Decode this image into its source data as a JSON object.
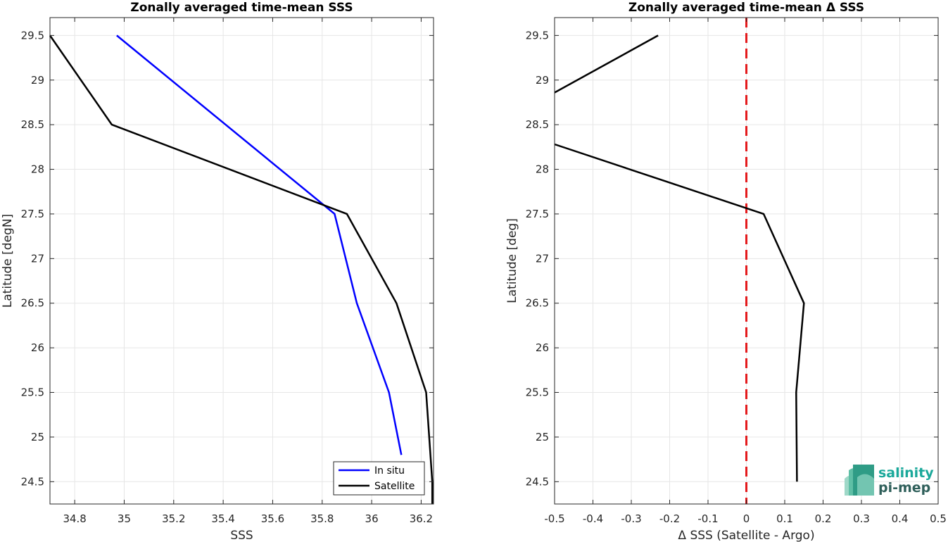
{
  "chart_data": [
    {
      "type": "line",
      "title": "Zonally averaged time-mean SSS",
      "xlabel": "SSS",
      "ylabel": "Latitude [degN]",
      "xlim": [
        34.7,
        36.25
      ],
      "ylim": [
        24.25,
        29.7
      ],
      "xticks": [
        "34.8",
        "35",
        "35.2",
        "35.4",
        "35.6",
        "35.8",
        "36",
        "36.2"
      ],
      "yticks": [
        "24.5",
        "25",
        "25.5",
        "26",
        "26.5",
        "27",
        "27.5",
        "28",
        "28.5",
        "29",
        "29.5"
      ],
      "grid": true,
      "legend_position": "bottom-right",
      "series": [
        {
          "name": "In situ",
          "color": "#0000ff",
          "points": [
            [
              34.97,
              29.5
            ],
            [
              35.85,
              27.5
            ],
            [
              35.94,
              26.5
            ],
            [
              36.07,
              25.5
            ],
            [
              36.12,
              24.8
            ]
          ]
        },
        {
          "name": "Satellite",
          "color": "#000000",
          "points": [
            [
              34.7,
              29.5
            ],
            [
              34.95,
              28.5
            ],
            [
              35.9,
              27.5
            ],
            [
              36.1,
              26.5
            ],
            [
              36.22,
              25.5
            ],
            [
              36.245,
              24.5
            ],
            [
              36.245,
              24.25
            ]
          ]
        }
      ]
    },
    {
      "type": "line",
      "title": "Zonally averaged time-mean Δ SSS",
      "xlabel": "Δ SSS (Satellite - Argo)",
      "ylabel": "Latitude [deg]",
      "xlim": [
        -0.5,
        0.5
      ],
      "ylim": [
        24.25,
        29.7
      ],
      "xticks": [
        "-0.5",
        "-0.4",
        "-0.3",
        "-0.2",
        "-0.1",
        "0",
        "0.1",
        "0.2",
        "0.3",
        "0.4",
        "0.5"
      ],
      "yticks": [
        "24.5",
        "25",
        "25.5",
        "26",
        "26.5",
        "27",
        "27.5",
        "28",
        "28.5",
        "29",
        "29.5"
      ],
      "grid": true,
      "reference_line": {
        "x": 0,
        "color": "#e41a1c",
        "style": "dashed"
      },
      "series": [
        {
          "color": "#000000",
          "segments": [
            [
              [
                -0.5,
                28.86
              ],
              [
                -0.23,
                29.5
              ]
            ],
            [
              [
                -0.5,
                28.28
              ],
              [
                0.045,
                27.5
              ],
              [
                0.15,
                26.5
              ],
              [
                0.13,
                25.5
              ],
              [
                0.132,
                24.5
              ]
            ]
          ]
        }
      ]
    }
  ],
  "logo": {
    "line1": "salinity",
    "line2": "pi-mep"
  }
}
